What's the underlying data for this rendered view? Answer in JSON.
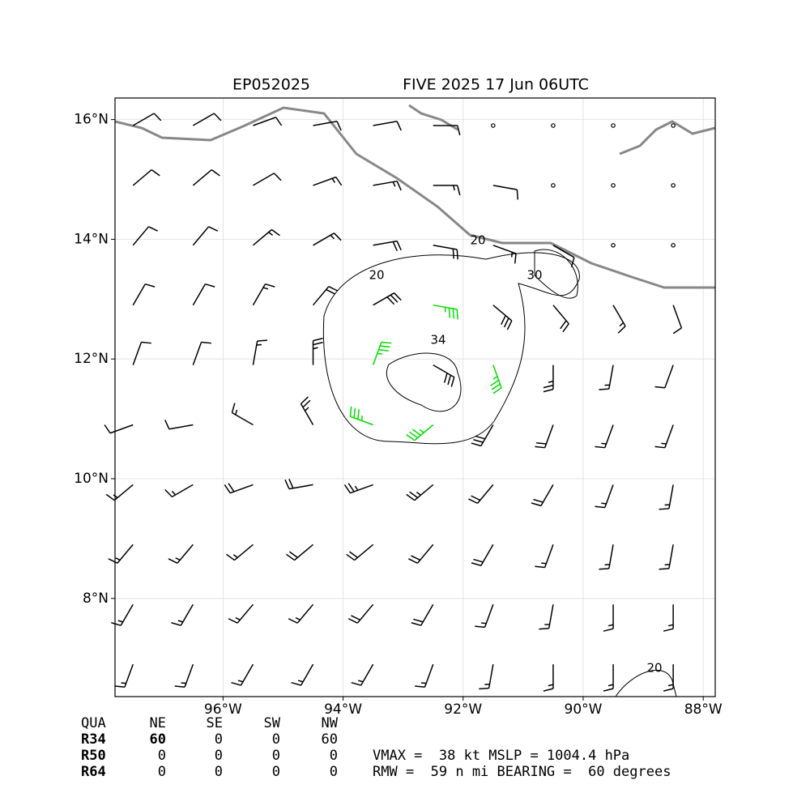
{
  "chart_data": {
    "type": "barbs",
    "title_left": "EP052025",
    "title_right": "FIVE 2025 17 Jun 06UTC",
    "xlim": [
      -97.8,
      -87.8
    ],
    "ylim": [
      6.36,
      16.36
    ],
    "xticks": [
      {
        "value": -96,
        "label": "96°W"
      },
      {
        "value": -94,
        "label": "94°W"
      },
      {
        "value": -92,
        "label": "92°W"
      },
      {
        "value": -90,
        "label": "90°W"
      },
      {
        "value": -88,
        "label": "88°W"
      }
    ],
    "yticks": [
      {
        "value": 8,
        "label": "8°N"
      },
      {
        "value": 10,
        "label": "10°N"
      },
      {
        "value": 12,
        "label": "12°N"
      },
      {
        "value": 14,
        "label": "14°N"
      },
      {
        "value": 16,
        "label": "16°N"
      }
    ],
    "grid": true,
    "barbs": {
      "lon": [
        -97.5,
        -96.5,
        -95.5,
        -94.5,
        -93.5,
        -92.5,
        -91.5,
        -90.5,
        -89.5,
        -88.5
      ],
      "lat": [
        15.9,
        14.9,
        13.9,
        12.9,
        11.9,
        10.9,
        9.9,
        8.9,
        7.9,
        6.9
      ],
      "direction": [
        [
          60,
          60,
          70,
          80,
          80,
          90,
          0,
          0,
          0,
          0
        ],
        [
          50,
          50,
          60,
          70,
          80,
          90,
          100,
          0,
          0,
          0
        ],
        [
          40,
          40,
          50,
          60,
          80,
          100,
          110,
          120,
          0,
          0
        ],
        [
          30,
          30,
          30,
          40,
          60,
          100,
          130,
          140,
          150,
          160
        ],
        [
          20,
          20,
          10,
          0,
          20,
          120,
          160,
          180,
          190,
          200
        ],
        [
          250,
          260,
          300,
          330,
          290,
          230,
          210,
          200,
          200,
          200
        ],
        [
          230,
          240,
          250,
          260,
          250,
          230,
          220,
          210,
          200,
          190
        ],
        [
          220,
          220,
          230,
          230,
          230,
          220,
          210,
          200,
          190,
          190
        ],
        [
          210,
          210,
          220,
          220,
          220,
          210,
          200,
          190,
          180,
          180
        ],
        [
          200,
          200,
          210,
          210,
          210,
          200,
          190,
          180,
          180,
          180
        ]
      ],
      "speed": [
        [
          10,
          10,
          10,
          10,
          10,
          10,
          0,
          0,
          0,
          0
        ],
        [
          10,
          10,
          10,
          15,
          15,
          15,
          10,
          0,
          0,
          0
        ],
        [
          10,
          10,
          15,
          15,
          20,
          20,
          15,
          10,
          0,
          0
        ],
        [
          10,
          10,
          15,
          20,
          30,
          35,
          30,
          20,
          15,
          10
        ],
        [
          10,
          10,
          15,
          25,
          35,
          30,
          35,
          25,
          15,
          10
        ],
        [
          10,
          10,
          15,
          25,
          35,
          35,
          30,
          20,
          15,
          15
        ],
        [
          15,
          15,
          20,
          20,
          25,
          25,
          20,
          20,
          15,
          15
        ],
        [
          15,
          15,
          15,
          20,
          20,
          20,
          20,
          15,
          15,
          15
        ],
        [
          15,
          15,
          15,
          15,
          20,
          20,
          15,
          15,
          15,
          15
        ],
        [
          15,
          15,
          15,
          15,
          15,
          15,
          15,
          15,
          15,
          15
        ]
      ]
    },
    "contours": [
      {
        "level": 20
      },
      {
        "level": 30
      },
      {
        "level": 20
      },
      {
        "level": 34
      },
      {
        "level": 20
      }
    ]
  },
  "table": {
    "header": [
      "QUA",
      "NE",
      "SE",
      "SW",
      "NW"
    ],
    "rows": [
      [
        "R34",
        60,
        0,
        0,
        60
      ],
      [
        "R50",
        0,
        0,
        0,
        0
      ],
      [
        "R64",
        0,
        0,
        0,
        0
      ]
    ]
  },
  "summary": [
    "VMAX =  38 kt MSLP = 1004.4 hPa",
    "RMW =  59 n mi BEARING =  60 degrees"
  ]
}
